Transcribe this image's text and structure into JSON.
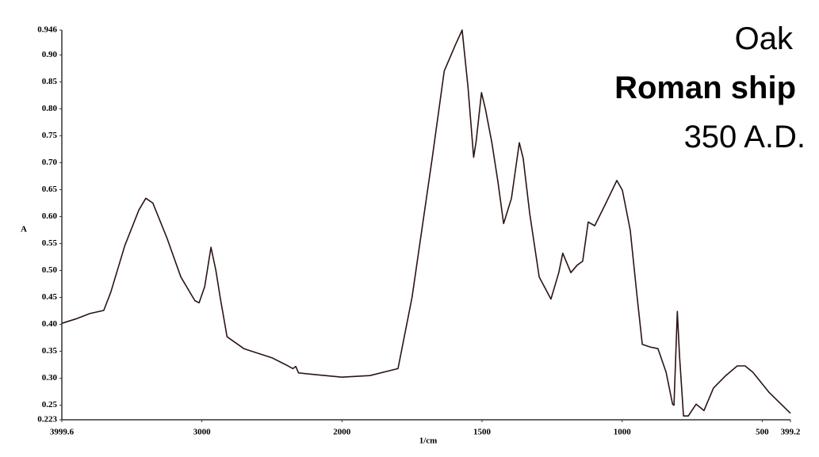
{
  "chart_data": {
    "type": "line",
    "annotations": [
      "Oak",
      "Roman ship",
      "350 A.D."
    ],
    "xlabel": "1/cm",
    "ylabel": "A",
    "xlim": [
      3999.6,
      399.2
    ],
    "ylim": [
      0.223,
      0.946
    ],
    "xticks": [
      3999.6,
      3000,
      2000,
      1500,
      1000,
      500,
      399.2
    ],
    "yticks": [
      0.223,
      0.25,
      {
        "value": 0.3,
        "label": "0.30"
      },
      0.35,
      {
        "value": 0.4,
        "label": "0.40"
      },
      0.45,
      {
        "value": 0.5,
        "label": "0.50"
      },
      0.55,
      {
        "value": 0.6,
        "label": "0.60"
      },
      0.65,
      {
        "value": 0.7,
        "label": "0.70"
      },
      0.75,
      {
        "value": 0.8,
        "label": "0.80"
      },
      0.85,
      {
        "value": 0.9,
        "label": "0.90"
      },
      0.946
    ],
    "grid": false,
    "series": [
      {
        "color": "#2b1414",
        "x": [
          3999.6,
          3900,
          3800,
          3700,
          3650,
          3550,
          3450,
          3400,
          3350,
          3250,
          3150,
          3050,
          3020,
          2980,
          2935,
          2900,
          2870,
          2820,
          2700,
          2500,
          2400,
          2350,
          2330,
          2310,
          2200,
          2000,
          1900,
          1800,
          1750,
          1678,
          1635,
          1594,
          1571,
          1550,
          1530,
          1521,
          1502,
          1488,
          1465,
          1443,
          1423,
          1395,
          1367,
          1353,
          1330,
          1296,
          1254,
          1226,
          1212,
          1183,
          1160,
          1141,
          1121,
          1098,
          1056,
          1019,
          999,
          971,
          948,
          928,
          900,
          872,
          843,
          820,
          815,
          803,
          795,
          781,
          764,
          736,
          708,
          674,
          632,
          589,
          561,
          533,
          476,
          399.2
        ],
        "values": [
          0.402,
          0.41,
          0.42,
          0.426,
          0.46,
          0.546,
          0.612,
          0.634,
          0.625,
          0.561,
          0.488,
          0.444,
          0.44,
          0.47,
          0.543,
          0.5,
          0.451,
          0.377,
          0.355,
          0.338,
          0.325,
          0.318,
          0.322,
          0.31,
          0.307,
          0.302,
          0.305,
          0.318,
          0.45,
          0.708,
          0.87,
          0.92,
          0.946,
          0.84,
          0.71,
          0.74,
          0.83,
          0.8,
          0.737,
          0.664,
          0.587,
          0.634,
          0.737,
          0.708,
          0.606,
          0.488,
          0.447,
          0.496,
          0.532,
          0.496,
          0.51,
          0.517,
          0.59,
          0.583,
          0.627,
          0.667,
          0.649,
          0.575,
          0.458,
          0.363,
          0.358,
          0.355,
          0.311,
          0.252,
          0.25,
          0.424,
          0.341,
          0.23,
          0.23,
          0.252,
          0.24,
          0.282,
          0.304,
          0.323,
          0.323,
          0.311,
          0.274,
          0.235
        ]
      }
    ]
  }
}
